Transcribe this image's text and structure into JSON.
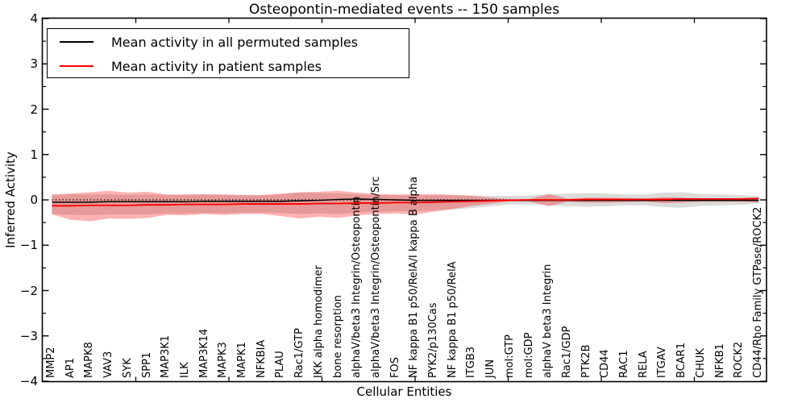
{
  "title": "Osteopontin-mediated events -- 150 samples",
  "axes": {
    "x_label": "Cellular Entities",
    "y_label": "Inferred Activity",
    "y_tick_labels": [
      "4",
      "3",
      "2",
      "1",
      "0",
      "−1",
      "−2",
      "−3",
      "−4"
    ]
  },
  "legend": {
    "items": [
      {
        "label": "Mean activity in all permuted samples",
        "color": "#000000"
      },
      {
        "label": "Mean activity in patient samples",
        "color": "#ff0000"
      }
    ]
  },
  "chart_data": {
    "type": "line",
    "title": "Osteopontin-mediated events -- 150 samples",
    "xlabel": "Cellular Entities",
    "ylabel": "Inferred Activity",
    "ylim": [
      -4,
      4
    ],
    "y_major_ticks": [
      4,
      3,
      2,
      1,
      0,
      -1,
      -2,
      -3,
      -4
    ],
    "y_minor_tick_step": 0.5,
    "grid": false,
    "legend_position": "upper left",
    "zero_reference_line": {
      "y": 0,
      "style": "dotted",
      "color": "#000000"
    },
    "x_categories": [
      "MMP2",
      "AP1",
      "MAPK8",
      "VAV3",
      "SYK",
      "SPP1",
      "MAP3K1",
      "ILK",
      "MAP3K14",
      "MAPK3",
      "MAPK1",
      "NFKBIA",
      "PLAU",
      "Rac1/GTP",
      "IKK alpha homodimer",
      "bone resorption",
      "alphaV/beta3 Integrin/Osteopontin",
      "alphaV/beta3 Integrin/Osteopontin/Src",
      "FOS",
      "NF kappa B1 p50/RelA/I kappa B alpha",
      "PYK2/p130Cas",
      "NF kappa B1 p50/RelA",
      "ITGB3",
      "JUN",
      "mol:GTP",
      "mol:GDP",
      "alphaV beta3 Integrin",
      "Rac1/GDP",
      "PTK2B",
      "CD44",
      "RAC1",
      "RELA",
      "ITGAV",
      "BCAR1",
      "CHUK",
      "NFKB1",
      "ROCK2",
      "CD44/Rho Family GTPase/ROCK2"
    ],
    "series": [
      {
        "name": "Permuted samples activity range",
        "type": "band",
        "color": "rgba(0,0,0,0.14)",
        "upper": [
          0.11,
          0.12,
          0.12,
          0.12,
          0.11,
          0.12,
          0.11,
          0.11,
          0.11,
          0.11,
          0.1,
          0.1,
          0.12,
          0.16,
          0.15,
          0.14,
          0.12,
          0.11,
          0.1,
          0.1,
          0.1,
          0.1,
          0.1,
          0.09,
          0.09,
          0.1,
          0.12,
          0.14,
          0.15,
          0.14,
          0.12,
          0.12,
          0.16,
          0.17,
          0.13,
          0.12,
          0.11,
          0.08
        ],
        "lower": [
          -0.31,
          -0.33,
          -0.34,
          -0.32,
          -0.32,
          -0.32,
          -0.3,
          -0.3,
          -0.29,
          -0.29,
          -0.28,
          -0.28,
          -0.29,
          -0.31,
          -0.3,
          -0.31,
          -0.28,
          -0.26,
          -0.25,
          -0.25,
          -0.23,
          -0.21,
          -0.18,
          -0.14,
          -0.1,
          -0.1,
          -0.12,
          -0.14,
          -0.15,
          -0.14,
          -0.12,
          -0.12,
          -0.16,
          -0.17,
          -0.13,
          -0.12,
          -0.11,
          -0.08
        ]
      },
      {
        "name": "Patient samples activity range",
        "type": "band",
        "color": "rgba(255,0,0,0.30)",
        "upper": [
          0.12,
          0.14,
          0.17,
          0.2,
          0.16,
          0.18,
          0.12,
          0.12,
          0.13,
          0.12,
          0.11,
          0.11,
          0.14,
          0.17,
          0.18,
          0.2,
          0.16,
          0.13,
          0.12,
          0.12,
          0.13,
          0.11,
          0.09,
          0.05,
          0.02,
          0.02,
          0.13,
          0.03,
          0.05,
          0.05,
          0.04,
          0.03,
          0.06,
          0.05,
          0.03,
          0.03,
          0.03,
          0.05
        ],
        "lower": [
          -0.32,
          -0.44,
          -0.47,
          -0.41,
          -0.42,
          -0.4,
          -0.33,
          -0.34,
          -0.31,
          -0.33,
          -0.31,
          -0.31,
          -0.36,
          -0.41,
          -0.37,
          -0.4,
          -0.34,
          -0.31,
          -0.3,
          -0.32,
          -0.26,
          -0.2,
          -0.13,
          -0.08,
          -0.03,
          -0.03,
          -0.14,
          -0.04,
          -0.06,
          -0.06,
          -0.05,
          -0.04,
          -0.07,
          -0.06,
          -0.04,
          -0.04,
          -0.04,
          -0.06
        ]
      },
      {
        "name": "Mean activity in all permuted samples",
        "type": "line",
        "color": "#000000",
        "values": [
          -0.05,
          -0.05,
          -0.05,
          -0.04,
          -0.04,
          -0.04,
          -0.04,
          -0.04,
          -0.03,
          -0.03,
          -0.03,
          -0.03,
          -0.03,
          -0.02,
          -0.01,
          0.01,
          0.02,
          0.01,
          0.0,
          -0.01,
          -0.01,
          -0.01,
          -0.01,
          -0.01,
          -0.01,
          -0.01,
          -0.01,
          -0.01,
          -0.01,
          -0.01,
          -0.01,
          -0.01,
          -0.01,
          -0.01,
          -0.01,
          -0.01,
          -0.01,
          -0.01
        ]
      },
      {
        "name": "Mean activity in patient samples",
        "type": "line",
        "color": "#ff0000",
        "values": [
          -0.13,
          -0.13,
          -0.12,
          -0.12,
          -0.12,
          -0.11,
          -0.11,
          -0.1,
          -0.1,
          -0.1,
          -0.09,
          -0.09,
          -0.09,
          -0.09,
          -0.08,
          -0.08,
          -0.07,
          -0.07,
          -0.06,
          -0.06,
          -0.05,
          -0.04,
          -0.03,
          -0.02,
          -0.01,
          0.0,
          0.0,
          0.0,
          0.01,
          0.01,
          0.01,
          0.01,
          0.01,
          0.02,
          0.02,
          0.02,
          0.02,
          0.03
        ]
      }
    ]
  }
}
